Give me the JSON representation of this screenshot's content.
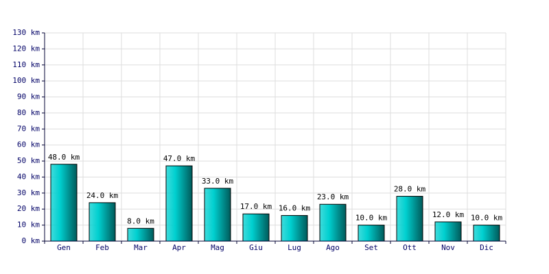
{
  "chart_data": {
    "type": "bar",
    "categories": [
      "Gen",
      "Feb",
      "Mar",
      "Apr",
      "Mag",
      "Giu",
      "Lug",
      "Ago",
      "Set",
      "Ott",
      "Nov",
      "Dic"
    ],
    "values": [
      48,
      24,
      8,
      47,
      33,
      17,
      16,
      23,
      10,
      28,
      12,
      10
    ],
    "value_labels": [
      "48.0 km",
      "24.0 km",
      "8.0 km",
      "47.0 km",
      "33.0 km",
      "17.0 km",
      "16.0 km",
      "23.0 km",
      "10.0 km",
      "28.0 km",
      "12.0 km",
      "10.0 km"
    ],
    "color": "#00d0d0",
    "ylim": [
      0,
      130
    ],
    "yticks": [
      {
        "value": 0,
        "label": "0 km"
      },
      {
        "value": 10,
        "label": "10 km"
      },
      {
        "value": 20,
        "label": "20 km"
      },
      {
        "value": 30,
        "label": "30 km"
      },
      {
        "value": 40,
        "label": "40 km"
      },
      {
        "value": 50,
        "label": "50 km"
      },
      {
        "value": 60,
        "label": "60 km"
      },
      {
        "value": 70,
        "label": "70 km"
      },
      {
        "value": 80,
        "label": "80 km"
      },
      {
        "value": 90,
        "label": "90 km"
      },
      {
        "value": 100,
        "label": "100 km"
      },
      {
        "value": 110,
        "label": "110 km"
      },
      {
        "value": 120,
        "label": "120 km"
      },
      {
        "value": 130,
        "label": "130 km"
      }
    ],
    "grid": true
  }
}
